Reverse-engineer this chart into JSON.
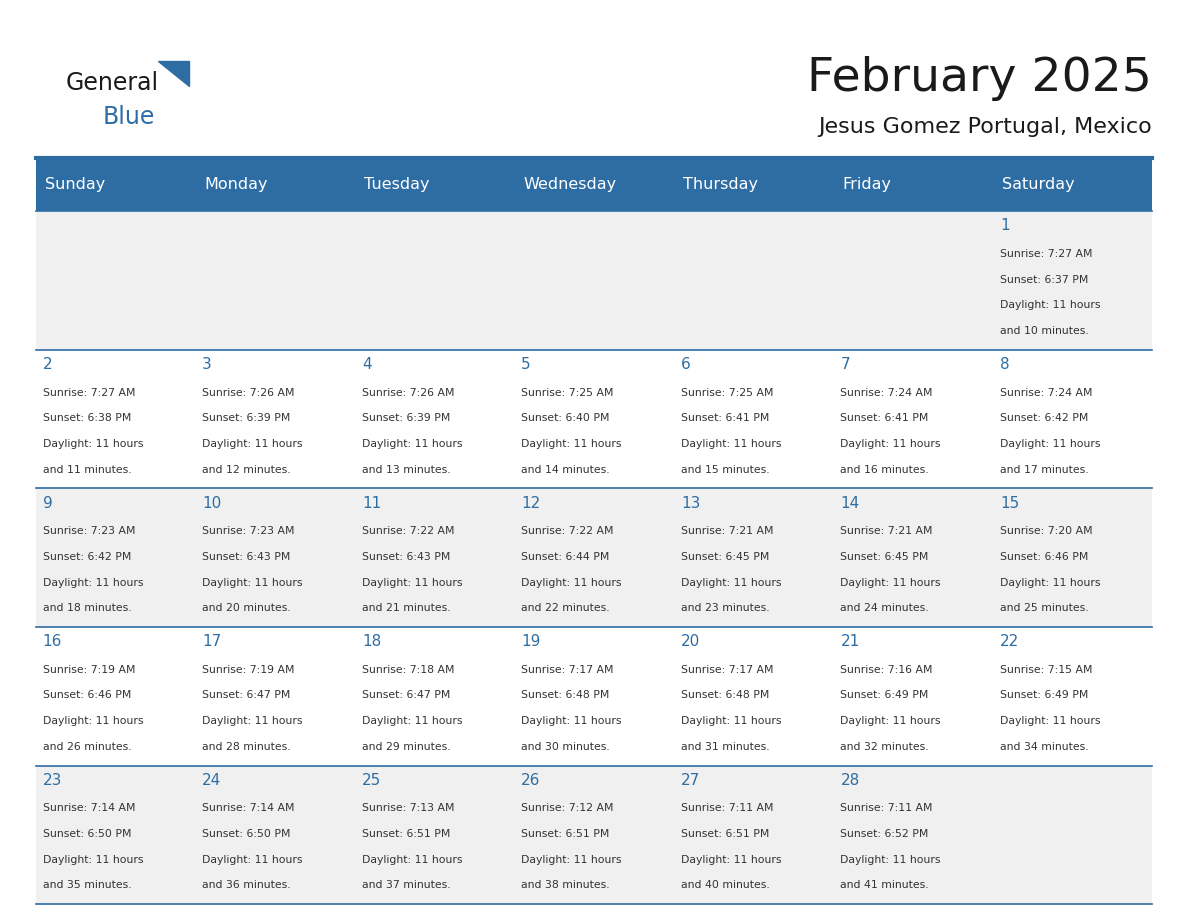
{
  "title": "February 2025",
  "subtitle": "Jesus Gomez Portugal, Mexico",
  "header_bg": "#2E6DA4",
  "header_text": "#FFFFFF",
  "cell_bg": "#F0F0F0",
  "cell_bg_alt": "#FFFFFF",
  "day_names": [
    "Sunday",
    "Monday",
    "Tuesday",
    "Wednesday",
    "Thursday",
    "Friday",
    "Saturday"
  ],
  "title_color": "#1a1a1a",
  "subtitle_color": "#1a1a1a",
  "line_color": "#2E6DA4",
  "day_num_color": "#2E6DA4",
  "text_color": "#333333",
  "days": [
    {
      "date": 1,
      "col": 6,
      "row": 0,
      "sunrise": "7:27 AM",
      "sunset": "6:37 PM",
      "daylight": "11 hours and 10 minutes."
    },
    {
      "date": 2,
      "col": 0,
      "row": 1,
      "sunrise": "7:27 AM",
      "sunset": "6:38 PM",
      "daylight": "11 hours and 11 minutes."
    },
    {
      "date": 3,
      "col": 1,
      "row": 1,
      "sunrise": "7:26 AM",
      "sunset": "6:39 PM",
      "daylight": "11 hours and 12 minutes."
    },
    {
      "date": 4,
      "col": 2,
      "row": 1,
      "sunrise": "7:26 AM",
      "sunset": "6:39 PM",
      "daylight": "11 hours and 13 minutes."
    },
    {
      "date": 5,
      "col": 3,
      "row": 1,
      "sunrise": "7:25 AM",
      "sunset": "6:40 PM",
      "daylight": "11 hours and 14 minutes."
    },
    {
      "date": 6,
      "col": 4,
      "row": 1,
      "sunrise": "7:25 AM",
      "sunset": "6:41 PM",
      "daylight": "11 hours and 15 minutes."
    },
    {
      "date": 7,
      "col": 5,
      "row": 1,
      "sunrise": "7:24 AM",
      "sunset": "6:41 PM",
      "daylight": "11 hours and 16 minutes."
    },
    {
      "date": 8,
      "col": 6,
      "row": 1,
      "sunrise": "7:24 AM",
      "sunset": "6:42 PM",
      "daylight": "11 hours and 17 minutes."
    },
    {
      "date": 9,
      "col": 0,
      "row": 2,
      "sunrise": "7:23 AM",
      "sunset": "6:42 PM",
      "daylight": "11 hours and 18 minutes."
    },
    {
      "date": 10,
      "col": 1,
      "row": 2,
      "sunrise": "7:23 AM",
      "sunset": "6:43 PM",
      "daylight": "11 hours and 20 minutes."
    },
    {
      "date": 11,
      "col": 2,
      "row": 2,
      "sunrise": "7:22 AM",
      "sunset": "6:43 PM",
      "daylight": "11 hours and 21 minutes."
    },
    {
      "date": 12,
      "col": 3,
      "row": 2,
      "sunrise": "7:22 AM",
      "sunset": "6:44 PM",
      "daylight": "11 hours and 22 minutes."
    },
    {
      "date": 13,
      "col": 4,
      "row": 2,
      "sunrise": "7:21 AM",
      "sunset": "6:45 PM",
      "daylight": "11 hours and 23 minutes."
    },
    {
      "date": 14,
      "col": 5,
      "row": 2,
      "sunrise": "7:21 AM",
      "sunset": "6:45 PM",
      "daylight": "11 hours and 24 minutes."
    },
    {
      "date": 15,
      "col": 6,
      "row": 2,
      "sunrise": "7:20 AM",
      "sunset": "6:46 PM",
      "daylight": "11 hours and 25 minutes."
    },
    {
      "date": 16,
      "col": 0,
      "row": 3,
      "sunrise": "7:19 AM",
      "sunset": "6:46 PM",
      "daylight": "11 hours and 26 minutes."
    },
    {
      "date": 17,
      "col": 1,
      "row": 3,
      "sunrise": "7:19 AM",
      "sunset": "6:47 PM",
      "daylight": "11 hours and 28 minutes."
    },
    {
      "date": 18,
      "col": 2,
      "row": 3,
      "sunrise": "7:18 AM",
      "sunset": "6:47 PM",
      "daylight": "11 hours and 29 minutes."
    },
    {
      "date": 19,
      "col": 3,
      "row": 3,
      "sunrise": "7:17 AM",
      "sunset": "6:48 PM",
      "daylight": "11 hours and 30 minutes."
    },
    {
      "date": 20,
      "col": 4,
      "row": 3,
      "sunrise": "7:17 AM",
      "sunset": "6:48 PM",
      "daylight": "11 hours and 31 minutes."
    },
    {
      "date": 21,
      "col": 5,
      "row": 3,
      "sunrise": "7:16 AM",
      "sunset": "6:49 PM",
      "daylight": "11 hours and 32 minutes."
    },
    {
      "date": 22,
      "col": 6,
      "row": 3,
      "sunrise": "7:15 AM",
      "sunset": "6:49 PM",
      "daylight": "11 hours and 34 minutes."
    },
    {
      "date": 23,
      "col": 0,
      "row": 4,
      "sunrise": "7:14 AM",
      "sunset": "6:50 PM",
      "daylight": "11 hours and 35 minutes."
    },
    {
      "date": 24,
      "col": 1,
      "row": 4,
      "sunrise": "7:14 AM",
      "sunset": "6:50 PM",
      "daylight": "11 hours and 36 minutes."
    },
    {
      "date": 25,
      "col": 2,
      "row": 4,
      "sunrise": "7:13 AM",
      "sunset": "6:51 PM",
      "daylight": "11 hours and 37 minutes."
    },
    {
      "date": 26,
      "col": 3,
      "row": 4,
      "sunrise": "7:12 AM",
      "sunset": "6:51 PM",
      "daylight": "11 hours and 38 minutes."
    },
    {
      "date": 27,
      "col": 4,
      "row": 4,
      "sunrise": "7:11 AM",
      "sunset": "6:51 PM",
      "daylight": "11 hours and 40 minutes."
    },
    {
      "date": 28,
      "col": 5,
      "row": 4,
      "sunrise": "7:11 AM",
      "sunset": "6:52 PM",
      "daylight": "11 hours and 41 minutes."
    }
  ]
}
